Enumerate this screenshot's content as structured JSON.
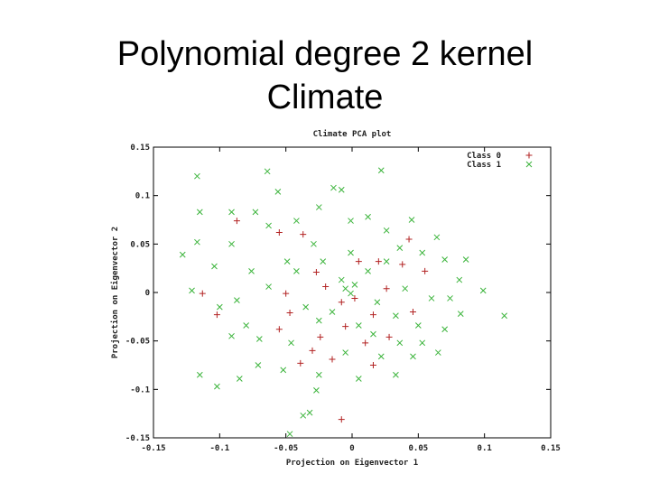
{
  "header": {
    "title_line1": "Polynomial degree 2 kernel",
    "title_line2": "Climate"
  },
  "chart_data": {
    "type": "scatter",
    "title": "Climate PCA plot",
    "x_label": "Projection on Eigenvector 1",
    "y_label": "Projection on Eigenvector 2",
    "xlim": [
      -0.15,
      0.15
    ],
    "ylim": [
      -0.15,
      0.15
    ],
    "xticks": [
      -0.15,
      -0.1,
      -0.05,
      0,
      0.05,
      0.1,
      0.15
    ],
    "yticks": [
      -0.15,
      -0.1,
      -0.05,
      0,
      0.05,
      0.1,
      0.15
    ],
    "legend": "top-right",
    "series": [
      {
        "name": "Class 0",
        "color": "#b22222",
        "marker": "plus",
        "x": [
          -0.113,
          -0.102,
          -0.087,
          -0.055,
          -0.055,
          -0.05,
          -0.037,
          -0.027,
          -0.047,
          -0.03,
          -0.039,
          -0.024,
          -0.008,
          -0.015,
          -0.005,
          0.01,
          0.016,
          0.016,
          0.02,
          0.043,
          0.038,
          0.055,
          0.046,
          0.026,
          0.002,
          0.005,
          -0.008,
          -0.02,
          0.028
        ],
        "values": [
          -0.001,
          -0.023,
          0.074,
          0.062,
          -0.038,
          -0.001,
          0.06,
          0.021,
          -0.021,
          -0.06,
          -0.073,
          -0.046,
          -0.131,
          -0.069,
          -0.035,
          -0.052,
          -0.023,
          -0.075,
          0.032,
          0.055,
          0.029,
          0.022,
          -0.02,
          0.004,
          -0.006,
          0.032,
          -0.01,
          0.006,
          -0.046
        ]
      },
      {
        "name": "Class 1",
        "color": "#3cb43c",
        "marker": "cross",
        "x": [
          -0.117,
          -0.064,
          0.022,
          -0.128,
          -0.121,
          -0.115,
          -0.102,
          -0.047,
          0.115,
          0.099,
          0.086,
          0.07,
          -0.085,
          -0.037,
          -0.032,
          -0.027,
          -0.071,
          -0.091,
          -0.087,
          -0.091,
          -0.117,
          -0.115,
          -0.091,
          -0.014,
          -0.008,
          -0.056,
          -0.025,
          0.045,
          0.064,
          0.081,
          0.082,
          0.065,
          0.046,
          0.033,
          0.005,
          -0.025,
          -0.052,
          -0.07,
          -0.076,
          -0.063,
          -0.049,
          -0.042,
          -0.001,
          0.012,
          0.026,
          0.053,
          0.06,
          0.033,
          0.019,
          -0.008,
          -0.022,
          -0.035,
          -0.015,
          0.005,
          0.04,
          0.05,
          0.074,
          -0.001,
          0.012,
          -0.029,
          -0.063,
          -0.073,
          -0.104,
          -0.1,
          -0.08,
          -0.046,
          -0.005,
          0.022,
          0.053,
          0.07,
          -0.001,
          -0.005,
          0.002,
          0.026,
          0.036,
          -0.042,
          -0.025,
          0.016,
          0.036
        ],
        "values": [
          0.12,
          0.125,
          0.126,
          0.039,
          0.002,
          -0.085,
          -0.097,
          -0.146,
          -0.024,
          0.002,
          0.034,
          0.034,
          -0.089,
          -0.127,
          -0.124,
          -0.101,
          -0.075,
          -0.045,
          -0.008,
          0.05,
          0.052,
          0.083,
          0.083,
          0.108,
          0.106,
          0.104,
          0.088,
          0.075,
          0.057,
          0.013,
          -0.022,
          -0.062,
          -0.066,
          -0.085,
          -0.089,
          -0.085,
          -0.08,
          -0.048,
          0.022,
          0.006,
          0.032,
          0.074,
          0.074,
          0.078,
          0.064,
          0.041,
          -0.006,
          -0.024,
          -0.01,
          0.013,
          0.032,
          -0.015,
          -0.02,
          -0.034,
          0.004,
          -0.034,
          -0.006,
          0.041,
          0.022,
          0.05,
          0.069,
          0.083,
          0.027,
          -0.015,
          -0.034,
          -0.052,
          -0.062,
          -0.066,
          -0.052,
          -0.038,
          -0.001,
          0.004,
          0.008,
          0.032,
          0.046,
          0.022,
          -0.029,
          -0.043,
          -0.052
        ]
      }
    ]
  }
}
